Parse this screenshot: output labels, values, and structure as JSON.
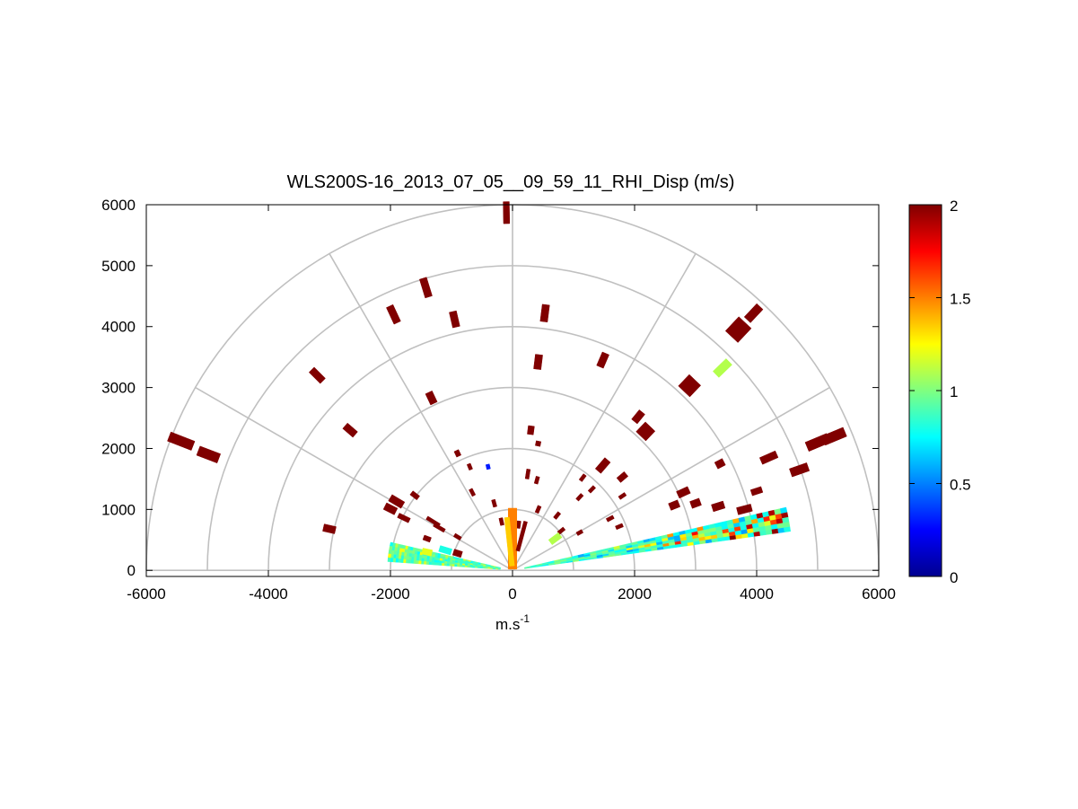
{
  "chart_data": {
    "type": "heatmap",
    "title": "WLS200S-16_2013_07_05__09_59_11_RHI_Disp (m/s)",
    "xlabel": "m.s",
    "xlabel_superscript": "-1",
    "ylabel": "",
    "xlim": [
      -6000,
      6000
    ],
    "ylim": [
      -100,
      6000
    ],
    "xticks": [
      "-6000",
      "-4000",
      "-2000",
      "0",
      "2000",
      "4000",
      "6000"
    ],
    "xtick_values": [
      -6000,
      -4000,
      -2000,
      0,
      2000,
      4000,
      6000
    ],
    "yticks": [
      "0",
      "1000",
      "2000",
      "3000",
      "4000",
      "5000",
      "6000"
    ],
    "ytick_values": [
      0,
      1000,
      2000,
      3000,
      4000,
      5000,
      6000
    ],
    "polar_grid": {
      "ring_radii": [
        1000,
        2000,
        3000,
        4000,
        5000,
        6000
      ],
      "spoke_angles_deg": [
        0,
        30,
        60,
        90,
        120,
        150,
        180
      ],
      "color": "#c0c0c0"
    },
    "colorbar": {
      "range": [
        0,
        2
      ],
      "ticks": [
        "0",
        "0.5",
        "1",
        "1.5",
        "2"
      ],
      "tick_values": [
        0,
        0.5,
        1,
        1.5,
        2
      ],
      "colormap": "jet"
    },
    "swaths": [
      {
        "elev_from": 8,
        "elev_to": 13,
        "r_from": 200,
        "r_to": 4600,
        "pattern": "mixed_right"
      },
      {
        "elev_from": 167,
        "elev_to": 176,
        "r_from": 200,
        "r_to": 2050,
        "pattern": "mixed_left"
      }
    ],
    "cells": [
      {
        "x": -100,
        "y": 5870,
        "v": 2.0,
        "len": 360,
        "w": 10
      },
      {
        "x": -1420,
        "y": 4640,
        "v": 2.0,
        "len": 320,
        "w": 12
      },
      {
        "x": -1950,
        "y": 4200,
        "v": 2.0,
        "len": 300,
        "w": 12
      },
      {
        "x": -950,
        "y": 4120,
        "v": 2.0,
        "len": 260,
        "w": 12
      },
      {
        "x": 530,
        "y": 4220,
        "v": 2.0,
        "len": 280,
        "w": 12
      },
      {
        "x": 3700,
        "y": 3950,
        "v": 2.0,
        "len": 320,
        "w": 28
      },
      {
        "x": 3950,
        "y": 4220,
        "v": 2.0,
        "len": 300,
        "w": 14
      },
      {
        "x": -3200,
        "y": 3200,
        "v": 2.0,
        "len": 260,
        "w": 12
      },
      {
        "x": 420,
        "y": 3420,
        "v": 2.0,
        "len": 240,
        "w": 12
      },
      {
        "x": 1480,
        "y": 3450,
        "v": 2.0,
        "len": 240,
        "w": 12
      },
      {
        "x": 3440,
        "y": 3320,
        "v": 1.1,
        "len": 300,
        "w": 14
      },
      {
        "x": 2900,
        "y": 3030,
        "v": 2.0,
        "len": 260,
        "w": 26
      },
      {
        "x": -5430,
        "y": 2120,
        "v": 2.0,
        "len": 420,
        "w": 16
      },
      {
        "x": -4980,
        "y": 1900,
        "v": 2.0,
        "len": 360,
        "w": 16
      },
      {
        "x": -1330,
        "y": 2830,
        "v": 2.0,
        "len": 200,
        "w": 12
      },
      {
        "x": -2660,
        "y": 2300,
        "v": 2.0,
        "len": 220,
        "w": 12
      },
      {
        "x": 2060,
        "y": 2520,
        "v": 2.0,
        "len": 200,
        "w": 12
      },
      {
        "x": 2180,
        "y": 2280,
        "v": 2.0,
        "len": 220,
        "w": 22
      },
      {
        "x": 5000,
        "y": 2100,
        "v": 2.0,
        "len": 380,
        "w": 16
      },
      {
        "x": 5270,
        "y": 2200,
        "v": 2.0,
        "len": 380,
        "w": 16
      },
      {
        "x": 4200,
        "y": 1850,
        "v": 2.0,
        "len": 280,
        "w": 12
      },
      {
        "x": 4700,
        "y": 1650,
        "v": 2.0,
        "len": 300,
        "w": 14
      },
      {
        "x": 3400,
        "y": 1750,
        "v": 2.0,
        "len": 140,
        "w": 12
      },
      {
        "x": 1480,
        "y": 1720,
        "v": 2.0,
        "len": 240,
        "w": 12
      },
      {
        "x": 1800,
        "y": 1530,
        "v": 2.0,
        "len": 160,
        "w": 10
      },
      {
        "x": 300,
        "y": 2300,
        "v": 2.0,
        "len": 140,
        "w": 10
      },
      {
        "x": 420,
        "y": 2080,
        "v": 2.0,
        "len": 80,
        "w": 8
      },
      {
        "x": -900,
        "y": 1920,
        "v": 2.0,
        "len": 100,
        "w": 8
      },
      {
        "x": -700,
        "y": 1700,
        "v": 2.0,
        "len": 100,
        "w": 6
      },
      {
        "x": -400,
        "y": 1700,
        "v": 0.3,
        "len": 80,
        "w": 6
      },
      {
        "x": 250,
        "y": 1580,
        "v": 2.0,
        "len": 160,
        "w": 6
      },
      {
        "x": 400,
        "y": 1480,
        "v": 2.0,
        "len": 120,
        "w": 6
      },
      {
        "x": 1150,
        "y": 1520,
        "v": 2.0,
        "len": 120,
        "w": 6
      },
      {
        "x": 1300,
        "y": 1330,
        "v": 2.0,
        "len": 120,
        "w": 6
      },
      {
        "x": 1100,
        "y": 1200,
        "v": 2.0,
        "len": 120,
        "w": 6
      },
      {
        "x": 1800,
        "y": 1220,
        "v": 2.0,
        "len": 120,
        "w": 6
      },
      {
        "x": 2800,
        "y": 1280,
        "v": 2.0,
        "len": 200,
        "w": 12
      },
      {
        "x": 3000,
        "y": 1100,
        "v": 2.0,
        "len": 160,
        "w": 12
      },
      {
        "x": 2650,
        "y": 1070,
        "v": 2.0,
        "len": 160,
        "w": 12
      },
      {
        "x": 3370,
        "y": 1050,
        "v": 2.0,
        "len": 200,
        "w": 12
      },
      {
        "x": 3800,
        "y": 1000,
        "v": 2.0,
        "len": 240,
        "w": 12
      },
      {
        "x": 4000,
        "y": 1300,
        "v": 2.0,
        "len": 180,
        "w": 10
      },
      {
        "x": -1900,
        "y": 1130,
        "v": 2.0,
        "len": 240,
        "w": 12
      },
      {
        "x": -1780,
        "y": 860,
        "v": 2.0,
        "len": 200,
        "w": 8
      },
      {
        "x": -2000,
        "y": 1010,
        "v": 2.0,
        "len": 200,
        "w": 12
      },
      {
        "x": -1600,
        "y": 1230,
        "v": 2.0,
        "len": 140,
        "w": 8
      },
      {
        "x": -3000,
        "y": 680,
        "v": 2.0,
        "len": 200,
        "w": 12
      },
      {
        "x": -1300,
        "y": 800,
        "v": 2.0,
        "len": 240,
        "w": 6
      },
      {
        "x": -1200,
        "y": 700,
        "v": 2.0,
        "len": 200,
        "w": 6
      },
      {
        "x": -660,
        "y": 1280,
        "v": 2.0,
        "len": 120,
        "w": 6
      },
      {
        "x": -300,
        "y": 1100,
        "v": 2.0,
        "len": 120,
        "w": 6
      },
      {
        "x": -180,
        "y": 800,
        "v": 2.0,
        "len": 120,
        "w": 6
      },
      {
        "x": 100,
        "y": 750,
        "v": 2.0,
        "len": 120,
        "w": 6
      },
      {
        "x": 420,
        "y": 1000,
        "v": 2.0,
        "len": 120,
        "w": 6
      },
      {
        "x": 730,
        "y": 900,
        "v": 2.0,
        "len": 120,
        "w": 6
      },
      {
        "x": 800,
        "y": 650,
        "v": 2.0,
        "len": 120,
        "w": 6
      },
      {
        "x": 1600,
        "y": 850,
        "v": 2.0,
        "len": 120,
        "w": 6
      },
      {
        "x": 1750,
        "y": 720,
        "v": 2.0,
        "len": 120,
        "w": 6
      },
      {
        "x": 1100,
        "y": 620,
        "v": 2.0,
        "len": 100,
        "w": 6
      },
      {
        "x": -900,
        "y": 550,
        "v": 2.0,
        "len": 120,
        "w": 6
      },
      {
        "x": -1400,
        "y": 520,
        "v": 2.0,
        "len": 120,
        "w": 8
      },
      {
        "x": 0,
        "y": 520,
        "v": 1.5,
        "len": 1000,
        "w": 14
      },
      {
        "x": -50,
        "y": 470,
        "v": 1.35,
        "len": 800,
        "w": 8
      },
      {
        "x": 150,
        "y": 560,
        "v": 2.0,
        "len": 500,
        "w": 6
      },
      {
        "x": -1400,
        "y": 300,
        "v": 1.2,
        "len": 160,
        "w": 10
      },
      {
        "x": -1100,
        "y": 330,
        "v": 0.8,
        "len": 200,
        "w": 10
      },
      {
        "x": -900,
        "y": 280,
        "v": 2.0,
        "len": 140,
        "w": 10
      },
      {
        "x": 700,
        "y": 520,
        "v": 1.1,
        "len": 200,
        "w": 10
      }
    ]
  }
}
